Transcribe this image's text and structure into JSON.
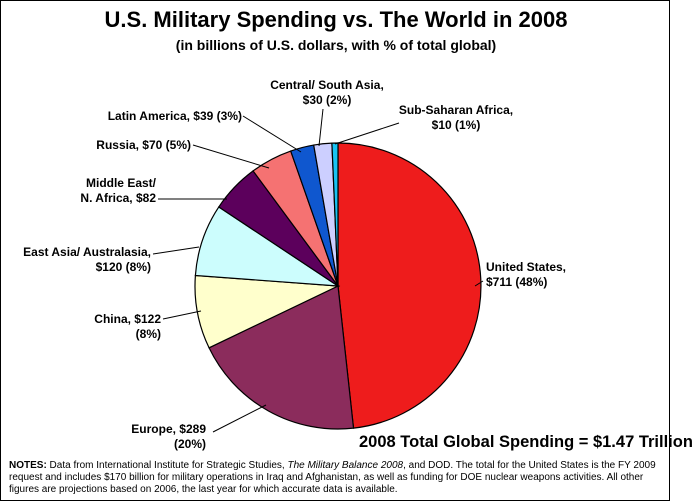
{
  "chart_data": {
    "type": "pie",
    "title": "U.S. Military Spending vs. The World in 2008",
    "subtitle": "(in billions of U.S. dollars, with % of total global)",
    "slices": [
      {
        "label_lines": [
          "United States,",
          "$711 (48%)"
        ],
        "value": 711,
        "color": "#ee1c1c"
      },
      {
        "label_lines": [
          "Europe, $289",
          "(20%)"
        ],
        "value": 289,
        "color": "#8b2c5c"
      },
      {
        "label_lines": [
          "China, $122",
          "(8%)"
        ],
        "value": 122,
        "color": "#ffffcc"
      },
      {
        "label_lines": [
          "East Asia/ Australasia,",
          "$120 (8%)"
        ],
        "value": 120,
        "color": "#ccfdfd"
      },
      {
        "label_lines": [
          "Middle East/",
          "N. Africa, $82"
        ],
        "value": 82,
        "color": "#5c005c"
      },
      {
        "label_lines": [
          "Russia, $70 (5%)"
        ],
        "value": 70,
        "color": "#f57272"
      },
      {
        "label_lines": [
          "Latin America, $39 (3%)"
        ],
        "value": 39,
        "color": "#0f57cf"
      },
      {
        "label_lines": [
          "Central/ South Asia,",
          "$30 (2%)"
        ],
        "value": 30,
        "color": "#cccfff"
      },
      {
        "label_lines": [
          "Sub-Saharan Africa,",
          "$10 (1%)"
        ],
        "value": 10,
        "color": "#18c3f3"
      }
    ],
    "total_text": "2008 Total Global Spending = $1.47 Trillion"
  },
  "notes": {
    "label": "NOTES:",
    "text_a": " Data from International Institute for Strategic Studies, ",
    "text_italic": "The Military Balance 2008",
    "text_b": ", and DOD. The total for the United States is the FY 2009 request and includes $170 billion for military operations in Iraq and Afghanistan, as well as funding for DOE nuclear weapons activities. All other figures are projections based on 2006, the last year for which accurate data is available."
  }
}
